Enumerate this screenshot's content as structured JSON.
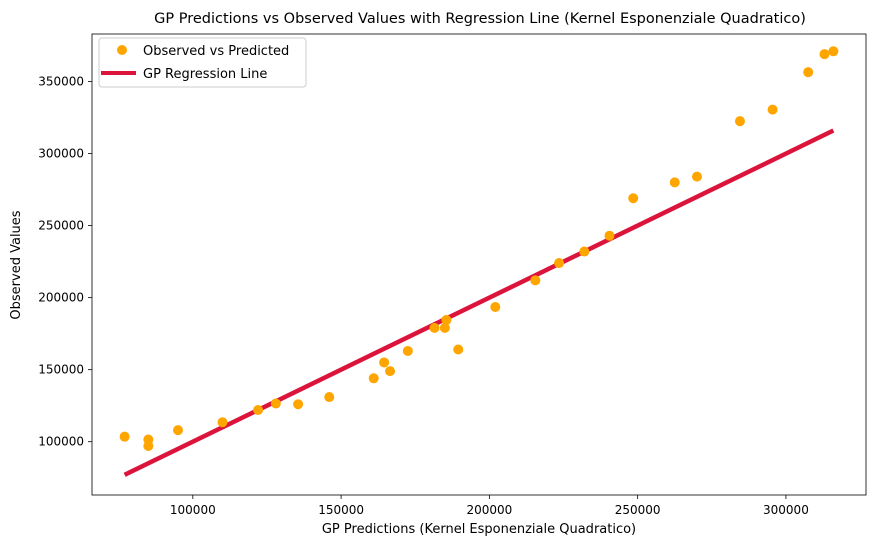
{
  "chart_data": {
    "type": "scatter",
    "title": "GP Predictions vs Observed Values with Regression Line (Kernel Esponenziale Quadratico)",
    "xlabel": "GP Predictions (Kernel Esponenziale Quadratico)",
    "ylabel": "Observed Values",
    "xlim": [
      66000,
      327000
    ],
    "ylim": [
      63000,
      383000
    ],
    "x_ticks": [
      100000,
      150000,
      200000,
      250000,
      300000
    ],
    "y_ticks": [
      100000,
      150000,
      200000,
      250000,
      300000,
      350000
    ],
    "x_tick_labels": [
      "100000",
      "150000",
      "200000",
      "250000",
      "300000"
    ],
    "y_tick_labels": [
      "100000",
      "150000",
      "200000",
      "250000",
      "300000",
      "350000"
    ],
    "grid": false,
    "legend_position": "top-left",
    "series": [
      {
        "name": "Observed vs Predicted",
        "kind": "scatter",
        "color": "#FFA500",
        "points": [
          [
            77000,
            103500
          ],
          [
            85000,
            101500
          ],
          [
            85000,
            97000
          ],
          [
            95000,
            108000
          ],
          [
            110000,
            113500
          ],
          [
            122000,
            122000
          ],
          [
            128000,
            126500
          ],
          [
            135500,
            126000
          ],
          [
            146000,
            131000
          ],
          [
            161000,
            144000
          ],
          [
            164500,
            155000
          ],
          [
            166500,
            149000
          ],
          [
            172500,
            163000
          ],
          [
            181500,
            179000
          ],
          [
            185000,
            179000
          ],
          [
            185500,
            184500
          ],
          [
            189500,
            164000
          ],
          [
            202000,
            193500
          ],
          [
            215500,
            212000
          ],
          [
            223500,
            224000
          ],
          [
            232000,
            232000
          ],
          [
            240500,
            243000
          ],
          [
            248500,
            269000
          ],
          [
            262500,
            280000
          ],
          [
            270000,
            284000
          ],
          [
            284500,
            322500
          ],
          [
            295500,
            330500
          ],
          [
            307500,
            356500
          ],
          [
            313000,
            369000
          ],
          [
            316000,
            371000
          ]
        ]
      },
      {
        "name": "GP Regression Line",
        "kind": "line",
        "color": "#DC143C",
        "points": [
          [
            77000,
            77000
          ],
          [
            316000,
            316000
          ]
        ]
      }
    ]
  }
}
